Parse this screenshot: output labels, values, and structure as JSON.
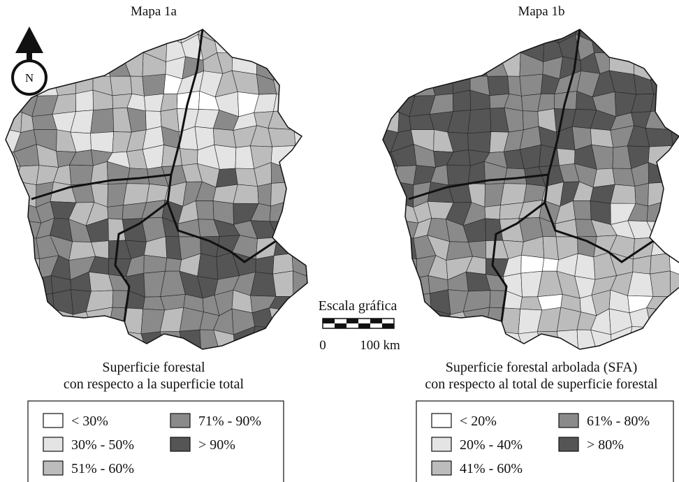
{
  "north": "N",
  "scale": {
    "title": "Escala gráfica",
    "start": "0",
    "end": "100 km"
  },
  "maps": [
    {
      "title": "Mapa 1a",
      "caption": [
        "Superficie forestal",
        "con respecto a la superficie total"
      ],
      "legend": [
        "< 30%",
        "30% - 50%",
        "51% - 60%",
        "71% - 90%",
        "> 90%"
      ]
    },
    {
      "title": "Mapa 1b",
      "caption": [
        "Superficie forestal arbolada (SFA)",
        "con respecto al total de superficie forestal"
      ],
      "legend": [
        "< 20%",
        "20% - 40%",
        "41% - 60%",
        "61% - 80%",
        "> 80%"
      ]
    }
  ]
}
